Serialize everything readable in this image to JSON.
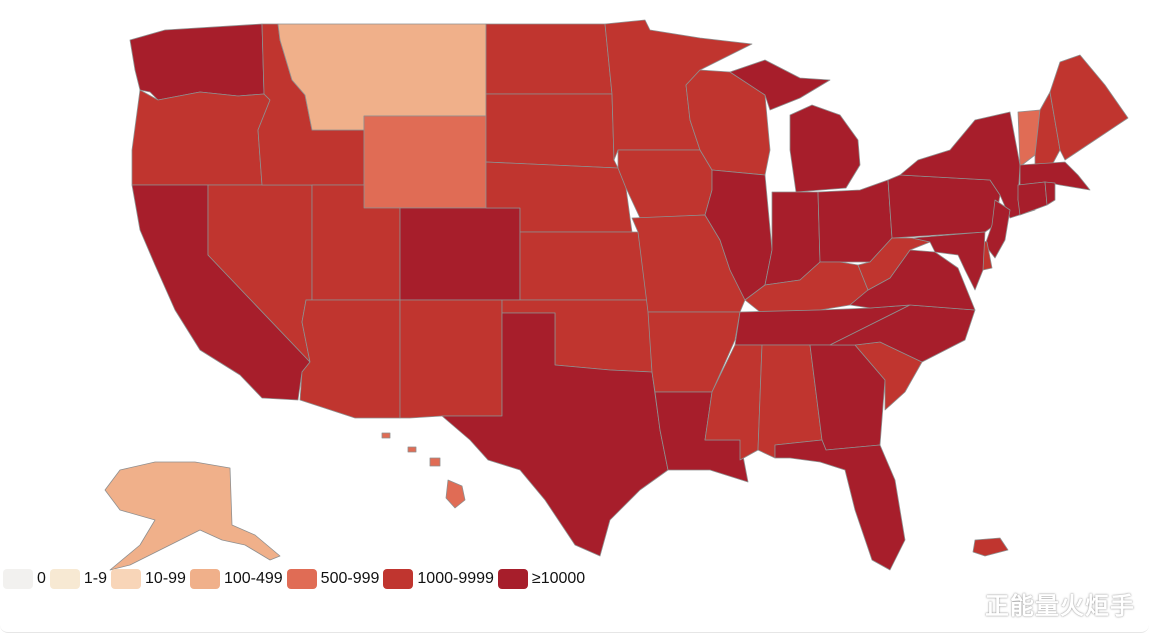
{
  "map": {
    "colors": {
      "c0": "#f2f1ef",
      "c1": "#f7e9d3",
      "c10": "#f8d5b8",
      "c100": "#f0b08a",
      "c500": "#e06c55",
      "c1000": "#c0352f",
      "c10000": "#a71e2b"
    },
    "state_buckets": {
      "WA": "c10000",
      "OR": "c1000",
      "CA": "c10000",
      "NV": "c1000",
      "ID": "c1000",
      "MT": "c100",
      "WY": "c500",
      "UT": "c1000",
      "AZ": "c1000",
      "CO": "c10000",
      "NM": "c1000",
      "ND": "c1000",
      "SD": "c1000",
      "NE": "c1000",
      "KS": "c1000",
      "OK": "c1000",
      "TX": "c10000",
      "MN": "c1000",
      "IA": "c1000",
      "MO": "c1000",
      "AR": "c1000",
      "LA": "c10000",
      "WI": "c1000",
      "IL": "c10000",
      "MI": "c10000",
      "IN": "c10000",
      "OH": "c10000",
      "KY": "c1000",
      "TN": "c10000",
      "MS": "c1000",
      "AL": "c1000",
      "GA": "c10000",
      "FL": "c10000",
      "SC": "c1000",
      "NC": "c10000",
      "VA": "c10000",
      "WV": "c1000",
      "PA": "c10000",
      "NY": "c10000",
      "VT": "c500",
      "NH": "c1000",
      "ME": "c1000",
      "MA": "c10000",
      "CT": "c10000",
      "RI": "c10000",
      "NJ": "c10000",
      "DE": "c1000",
      "MD": "c10000",
      "AK": "c100",
      "HI": "c500",
      "PR": "c1000"
    }
  },
  "legend": [
    {
      "label": "0",
      "color": "#f2f1ef"
    },
    {
      "label": "1-9",
      "color": "#f7e9d3"
    },
    {
      "label": "10-99",
      "color": "#f8d5b8"
    },
    {
      "label": "100-499",
      "color": "#f0b08a"
    },
    {
      "label": "500-999",
      "color": "#e06c55"
    },
    {
      "label": "1000-9999",
      "color": "#c0352f"
    },
    {
      "label": "≥10000",
      "color": "#a71e2b"
    }
  ],
  "watermark": "正能量火炬手"
}
